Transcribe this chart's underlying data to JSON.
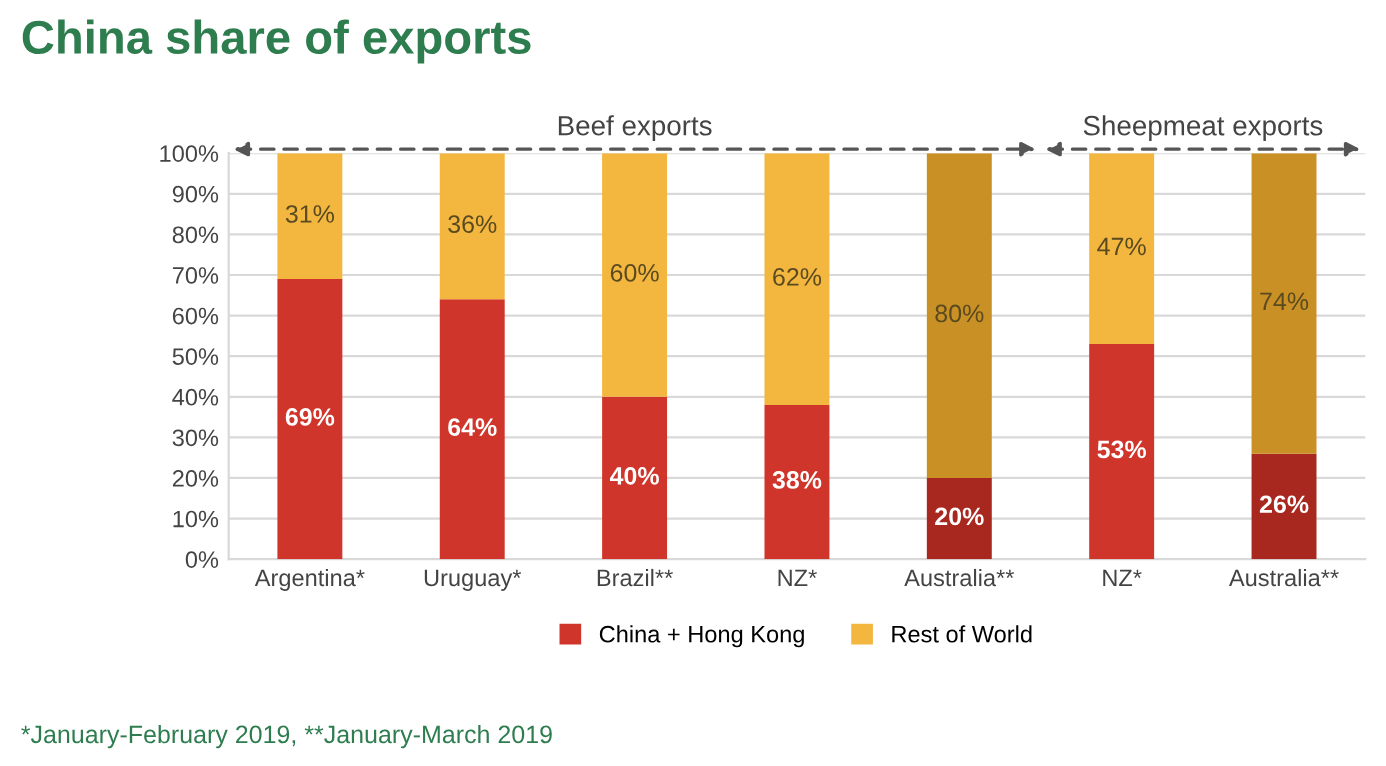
{
  "chart_data": {
    "type": "bar",
    "title": "China share of exports",
    "stacked": true,
    "categories": [
      "Argentina*",
      "Uruguay*",
      "Brazil**",
      "NZ*",
      "Australia**",
      "NZ*",
      "Australia**"
    ],
    "series": [
      {
        "name": "China + Hong Kong",
        "color": "#d0352b",
        "colors": [
          "#d0352b",
          "#d0352b",
          "#d0352b",
          "#d0352b",
          "#a8281f",
          "#d0352b",
          "#a8281f"
        ],
        "values": [
          69,
          64,
          40,
          38,
          20,
          53,
          26
        ],
        "value_labels": [
          "69%",
          "64%",
          "40%",
          "38%",
          "20%",
          "53%",
          "26%"
        ]
      },
      {
        "name": "Rest of World",
        "color": "#f3b63f",
        "colors": [
          "#f3b63f",
          "#f3b63f",
          "#f3b63f",
          "#f3b63f",
          "#c99025",
          "#f3b63f",
          "#c99025"
        ],
        "values": [
          31,
          36,
          60,
          62,
          80,
          47,
          74
        ],
        "value_labels": [
          "31%",
          "36%",
          "60%",
          "62%",
          "80%",
          "47%",
          "74%"
        ]
      }
    ],
    "ylim": [
      0,
      100
    ],
    "yticks": [
      {
        "value": 0,
        "label": "0%"
      },
      {
        "value": 10,
        "label": "10%"
      },
      {
        "value": 20,
        "label": "20%"
      },
      {
        "value": 30,
        "label": "30%"
      },
      {
        "value": 40,
        "label": "40%"
      },
      {
        "value": 50,
        "label": "50%"
      },
      {
        "value": 60,
        "label": "60%"
      },
      {
        "value": 70,
        "label": "70%"
      },
      {
        "value": 80,
        "label": "80%"
      },
      {
        "value": 90,
        "label": "90%"
      },
      {
        "value": 100,
        "label": "100%"
      }
    ],
    "grid": "y",
    "legend": "bottom",
    "annotations": [
      "Beef exports",
      "Sheepmeat exports",
      "*January-February 2019, **January-March 2019"
    ]
  }
}
